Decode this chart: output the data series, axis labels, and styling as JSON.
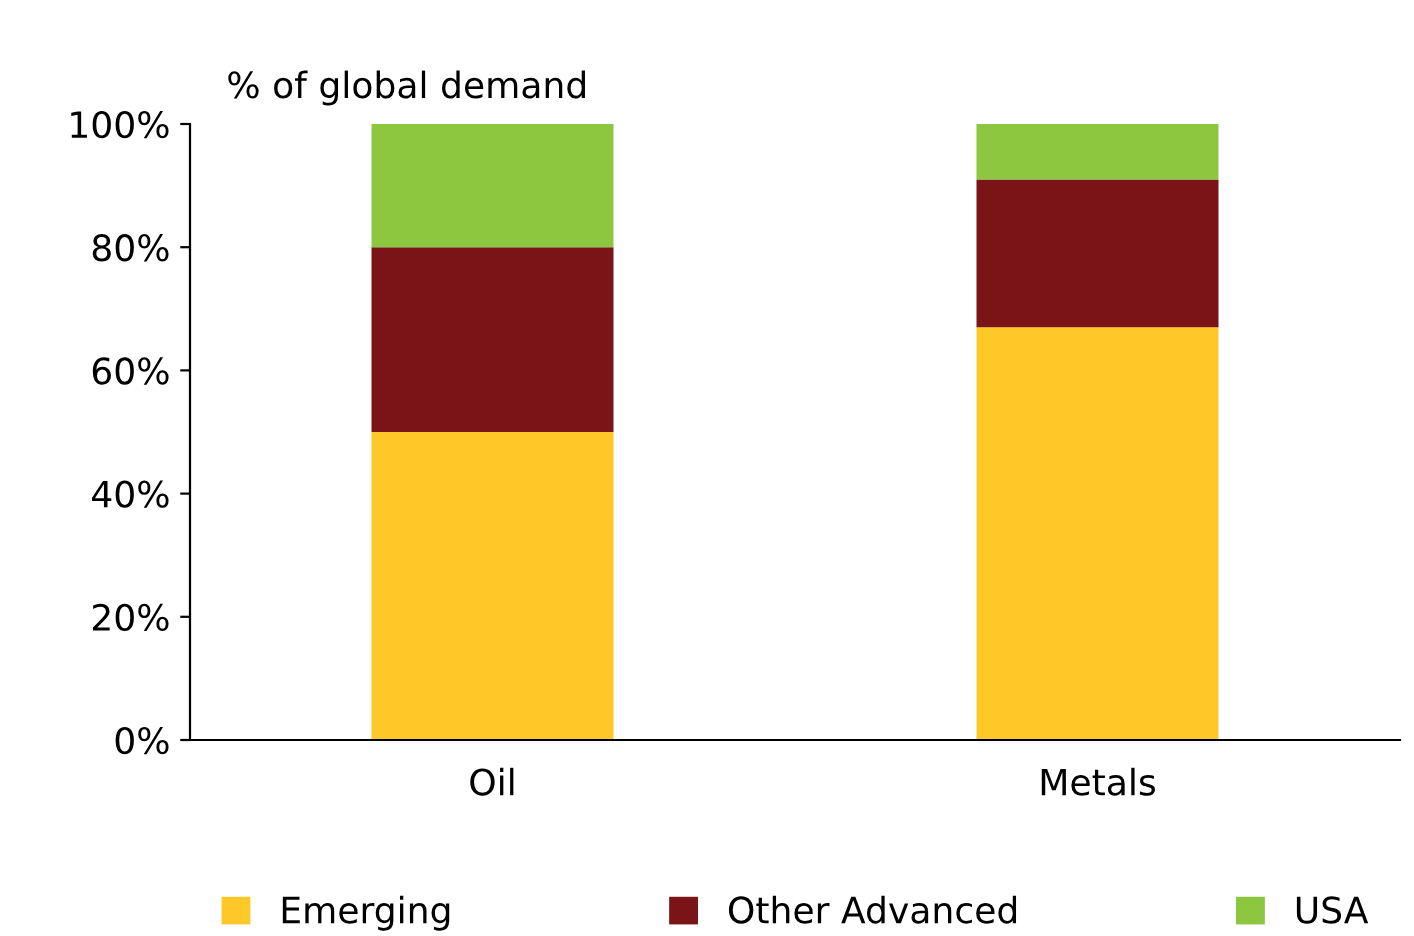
{
  "chart_data": {
    "type": "bar",
    "stacked": true,
    "ylabel": "% of global demand",
    "categories": [
      "Oil",
      "Metals"
    ],
    "series": [
      {
        "name": "Emerging",
        "color": "#ffc829",
        "values": [
          50,
          67
        ]
      },
      {
        "name": "Other Advanced",
        "color": "#7b1416",
        "values": [
          30,
          24
        ]
      },
      {
        "name": "USA",
        "color": "#8dc63f",
        "values": [
          20,
          9
        ]
      }
    ],
    "ylim": [
      0,
      100
    ],
    "yticks": [
      {
        "value": 0,
        "label": "0%"
      },
      {
        "value": 20,
        "label": "20%"
      },
      {
        "value": 40,
        "label": "40%"
      },
      {
        "value": 60,
        "label": "60%"
      },
      {
        "value": 80,
        "label": "80%"
      },
      {
        "value": 100,
        "label": "100%"
      }
    ],
    "grid": false,
    "legend": "bottom"
  }
}
